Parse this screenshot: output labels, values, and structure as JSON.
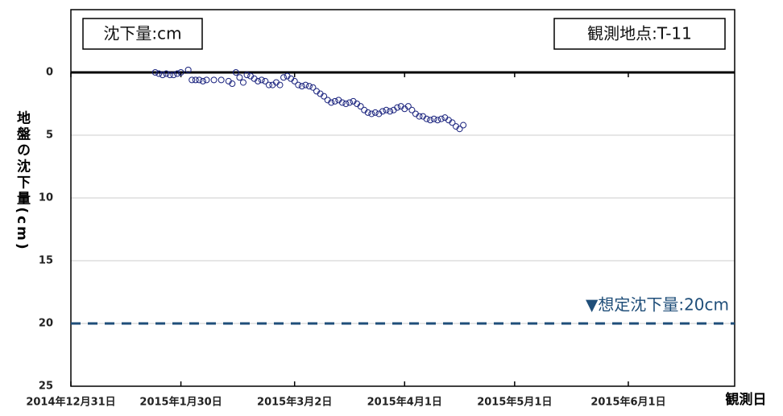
{
  "chart_data": {
    "type": "scatter",
    "title_box": "沈下量:cm",
    "station_box": "観測地点:T-11",
    "y_label": "地盤の沈下量(cm)",
    "x_label": "観測日",
    "color": "#1a237e",
    "ylim": [
      -5,
      25
    ],
    "y_inverted": true,
    "yticks": [
      0,
      5,
      10,
      15,
      20,
      25
    ],
    "xlim": [
      "2014-12-31",
      "2015-06-30"
    ],
    "xticks": [
      {
        "value": "2014-12-31",
        "label": "2014年12月31日"
      },
      {
        "value": "2015-01-30",
        "label": "2015年1月30日"
      },
      {
        "value": "2015-03-02",
        "label": "2015年3月2日"
      },
      {
        "value": "2015-04-01",
        "label": "2015年4月1日"
      },
      {
        "value": "2015-05-01",
        "label": "2015年5月1日"
      },
      {
        "value": "2015-06-01",
        "label": "2015年6月1日"
      }
    ],
    "grid": true,
    "threshold": {
      "value": 20,
      "label": "▼想定沈下量:20cm",
      "color": "#1f4e79"
    },
    "x": [
      "2015-01-23",
      "2015-01-24",
      "2015-01-25",
      "2015-01-26",
      "2015-01-27",
      "2015-01-28",
      "2015-01-29",
      "2015-01-30",
      "2015-02-01",
      "2015-02-02",
      "2015-02-03",
      "2015-02-04",
      "2015-02-05",
      "2015-02-06",
      "2015-02-08",
      "2015-02-10",
      "2015-02-12",
      "2015-02-13",
      "2015-02-14",
      "2015-02-15",
      "2015-02-16",
      "2015-02-17",
      "2015-02-18",
      "2015-02-19",
      "2015-02-20",
      "2015-02-21",
      "2015-02-22",
      "2015-02-23",
      "2015-02-24",
      "2015-02-25",
      "2015-02-26",
      "2015-02-27",
      "2015-02-28",
      "2015-03-01",
      "2015-03-02",
      "2015-03-03",
      "2015-03-04",
      "2015-03-05",
      "2015-03-06",
      "2015-03-07",
      "2015-03-08",
      "2015-03-09",
      "2015-03-10",
      "2015-03-11",
      "2015-03-12",
      "2015-03-13",
      "2015-03-14",
      "2015-03-15",
      "2015-03-16",
      "2015-03-17",
      "2015-03-18",
      "2015-03-19",
      "2015-03-20",
      "2015-03-21",
      "2015-03-22",
      "2015-03-23",
      "2015-03-24",
      "2015-03-25",
      "2015-03-26",
      "2015-03-27",
      "2015-03-28",
      "2015-03-29",
      "2015-03-30",
      "2015-03-31",
      "2015-04-01",
      "2015-04-02",
      "2015-04-03",
      "2015-04-04",
      "2015-04-05",
      "2015-04-06",
      "2015-04-07",
      "2015-04-08",
      "2015-04-09",
      "2015-04-10",
      "2015-04-11",
      "2015-04-12",
      "2015-04-13",
      "2015-04-14",
      "2015-04-15",
      "2015-04-16",
      "2015-04-17"
    ],
    "values": [
      0.0,
      0.1,
      0.2,
      0.1,
      0.2,
      0.2,
      0.1,
      0.0,
      -0.2,
      0.6,
      0.6,
      0.6,
      0.7,
      0.6,
      0.6,
      0.6,
      0.7,
      0.9,
      0.0,
      0.4,
      0.8,
      0.2,
      0.3,
      0.5,
      0.7,
      0.6,
      0.7,
      1.0,
      1.0,
      0.8,
      1.0,
      0.4,
      0.3,
      0.5,
      0.7,
      1.0,
      1.1,
      1.0,
      1.1,
      1.2,
      1.5,
      1.7,
      1.9,
      2.2,
      2.4,
      2.3,
      2.2,
      2.4,
      2.5,
      2.4,
      2.3,
      2.5,
      2.7,
      3.0,
      3.2,
      3.3,
      3.2,
      3.3,
      3.1,
      3.0,
      3.1,
      3.0,
      2.8,
      2.7,
      2.9,
      2.7,
      3.0,
      3.3,
      3.5,
      3.5,
      3.7,
      3.8,
      3.7,
      3.8,
      3.7,
      3.6,
      3.8,
      4.0,
      4.3,
      4.5,
      4.2
    ]
  }
}
